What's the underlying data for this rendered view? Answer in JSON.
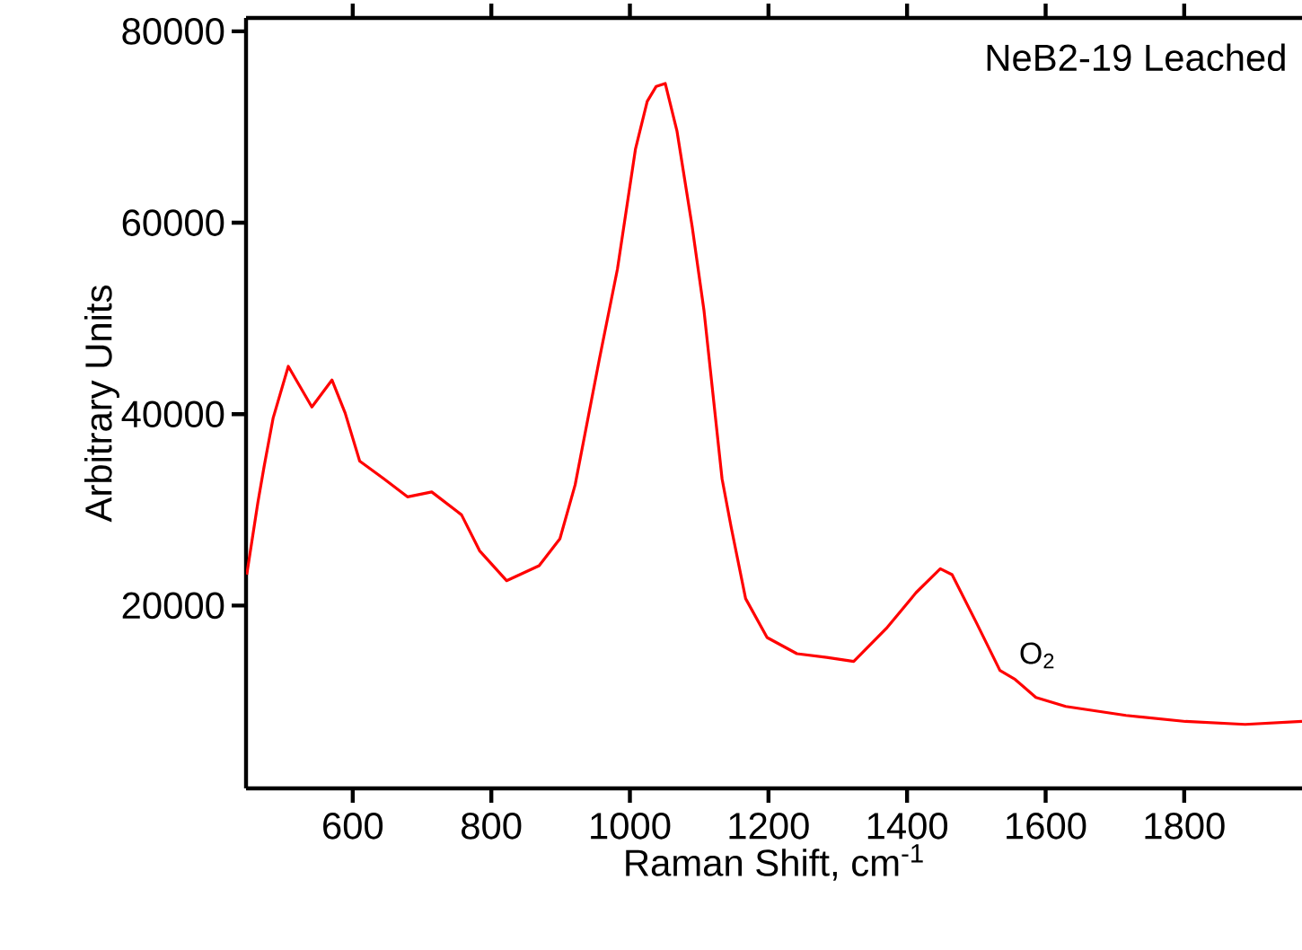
{
  "chart_data": {
    "type": "line",
    "title": "NeB2-19 Leached",
    "xlabel": "Raman Shift, cm$^{-1}$",
    "ylabel": "Arbitrary Units",
    "xlim": [
      446,
      1970
    ],
    "ylim": [
      900,
      81400
    ],
    "xticks": [
      600,
      800,
      1000,
      1200,
      1400,
      1600,
      1800
    ],
    "yticks": [
      20000,
      40000,
      60000,
      80000
    ],
    "annotations": [
      {
        "text": "O$_{2}$",
        "x": 1556,
        "y": 12280
      }
    ],
    "series": [
      {
        "color": "#ff0000",
        "x": [
          447,
          463,
          472,
          485,
          507,
          541,
          570,
          589,
          610,
          645,
          679,
          714,
          757,
          783,
          822,
          869,
          899,
          921,
          956,
          982,
          1008,
          1025,
          1038,
          1051,
          1068,
          1090,
          1107,
          1133,
          1146,
          1167,
          1198,
          1241,
          1284,
          1323,
          1370,
          1413,
          1448,
          1465,
          1500,
          1534,
          1556,
          1586,
          1629,
          1716,
          1802,
          1888,
          1970
        ],
        "values": [
          23230,
          30740,
          34500,
          39560,
          45000,
          40750,
          43570,
          40130,
          35100,
          33240,
          31360,
          31870,
          29480,
          25730,
          22600,
          24170,
          26980,
          32620,
          45770,
          55150,
          67680,
          72680,
          74250,
          74550,
          69560,
          59530,
          50780,
          33240,
          28240,
          20730,
          16660,
          14970,
          14590,
          14160,
          17600,
          21350,
          23850,
          23230,
          18220,
          13220,
          12280,
          10400,
          9460,
          8520,
          7890,
          7580,
          7890
        ]
      }
    ]
  }
}
